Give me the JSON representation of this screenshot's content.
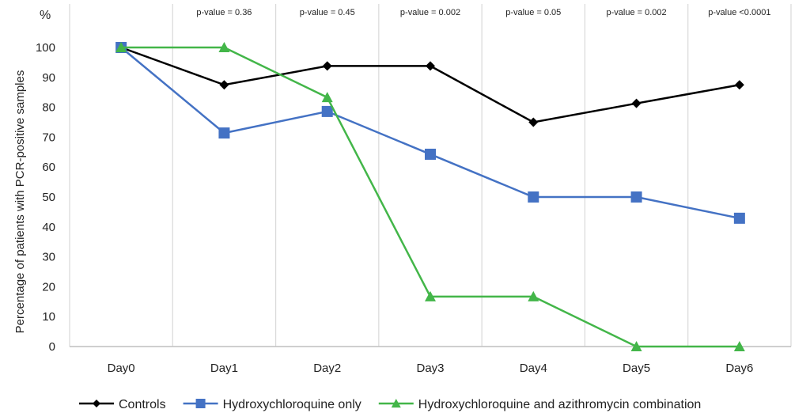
{
  "chart_data": {
    "type": "line",
    "categories": [
      "Day0",
      "Day1",
      "Day2",
      "Day3",
      "Day4",
      "Day5",
      "Day6"
    ],
    "ylabel": "Percentage of patients with PCR-positive samples",
    "yunit": "%",
    "ylim": [
      0,
      100
    ],
    "yticks": [
      0,
      10,
      20,
      30,
      40,
      50,
      60,
      70,
      80,
      90,
      100
    ],
    "grid": "vertical",
    "legend_position": "bottom",
    "pvalues": [
      "p-value = 0.36",
      "p-value = 0.45",
      "p-value = 0.002",
      "p-value = 0.05",
      "p-value = 0.002",
      "p-value <0.0001"
    ],
    "series": [
      {
        "name": "Controls",
        "values": [
          100,
          87.5,
          93.8,
          93.8,
          75,
          81.3,
          87.5
        ],
        "color": "#000000",
        "marker": "diamond"
      },
      {
        "name": "Hydroxychloroquine only",
        "values": [
          100,
          71.4,
          78.6,
          64.3,
          50,
          50,
          42.9
        ],
        "color": "#4472C4",
        "marker": "square"
      },
      {
        "name": "Hydroxychloroquine and azithromycin combination",
        "values": [
          100,
          100,
          83.3,
          16.7,
          16.7,
          0,
          0
        ],
        "color": "#43B649",
        "marker": "triangle"
      }
    ]
  }
}
